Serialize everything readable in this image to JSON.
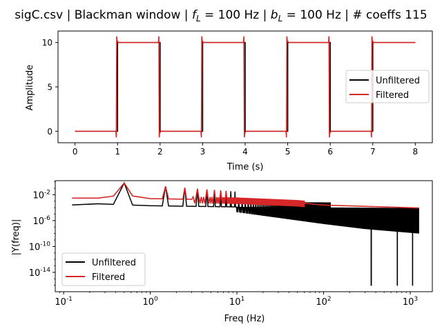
{
  "figure": {
    "title": "sigC.csv | Blackman window | f_L = 100 Hz | b_L = 100 Hz | # coeffs 115",
    "title_parts": {
      "prefix": "sigC.csv | Blackman window | ",
      "fL_sym": "f",
      "fL_sub": "L",
      "fL_val": " = 100 Hz | ",
      "bL_sym": "b",
      "bL_sub": "L",
      "bL_val": " = 100 Hz | # coeffs 115"
    }
  },
  "chart_data": [
    {
      "type": "line",
      "xlabel": "Time (s)",
      "ylabel": "Amplitude",
      "xlim": [
        -0.4,
        8.4
      ],
      "ylim": [
        -1.3,
        11.3
      ],
      "xticks": [
        0,
        1,
        2,
        3,
        4,
        5,
        6,
        7,
        8
      ],
      "yticks": [
        0,
        5,
        10
      ],
      "legend_position": "center-right",
      "series": [
        {
          "name": "Unfiltered",
          "color": "#000000",
          "x": [
            0,
            1.0,
            1.0,
            2.0,
            2.0,
            3.0,
            3.0,
            4.0,
            4.0,
            5.0,
            5.0,
            6.0,
            6.0,
            7.0,
            7.0,
            8.0
          ],
          "y": [
            0,
            0,
            10,
            10,
            0,
            0,
            10,
            10,
            0,
            0,
            10,
            10,
            0,
            0,
            10,
            10
          ]
        },
        {
          "name": "Filtered",
          "color": "#d62728",
          "x": [
            0,
            0.96,
            0.97,
            0.98,
            0.99,
            1.02,
            1.05,
            1.96,
            1.97,
            1.98,
            1.99,
            2.02,
            2.05,
            2.96,
            2.97,
            2.98,
            2.99,
            3.02,
            3.05,
            3.96,
            3.97,
            3.98,
            3.99,
            4.02,
            4.05,
            4.96,
            4.97,
            4.98,
            4.99,
            5.02,
            5.05,
            5.96,
            5.97,
            5.98,
            5.99,
            6.02,
            6.05,
            6.96,
            6.97,
            6.98,
            6.99,
            7.02,
            7.05,
            8.0
          ],
          "y": [
            0,
            0,
            -0.7,
            10.7,
            10.2,
            10,
            10,
            10,
            10.7,
            -0.7,
            -0.2,
            0,
            0,
            0,
            -0.7,
            10.7,
            10.2,
            10,
            10,
            10,
            10.7,
            -0.7,
            -0.2,
            0,
            0,
            0,
            -0.7,
            10.7,
            10.2,
            10,
            10,
            10,
            10.7,
            -0.7,
            -0.2,
            0,
            0,
            0,
            -0.7,
            10.7,
            10.2,
            10,
            10,
            10
          ]
        }
      ]
    },
    {
      "type": "line",
      "xlabel": "Freq (Hz)",
      "ylabel": "|Y(freq)|",
      "xscale": "log",
      "yscale": "log",
      "xlim": [
        0.08,
        1800
      ],
      "ylim": [
        1e-17,
        1.5
      ],
      "xticks": [
        0.1,
        1,
        10,
        100,
        1000
      ],
      "xtick_labels": [
        "10^-1",
        "10^0",
        "10^1",
        "10^2",
        "10^3"
      ],
      "yticks": [
        0.01,
        1e-06,
        1e-10,
        1e-14
      ],
      "ytick_labels": [
        "10^-2",
        "10^-6",
        "10^-10",
        "10^-14"
      ],
      "legend_position": "lower-left",
      "series": [
        {
          "name": "Unfiltered",
          "color": "#000000",
          "harmonic_peaks": {
            "f": [
              0.5,
              1.5,
              2.5,
              3.5,
              4.5,
              5.5,
              6.5,
              7.5,
              8.5,
              9.5
            ],
            "amp": [
              0.65,
              0.2,
              0.12,
              0.085,
              0.066,
              0.054,
              0.046,
              0.04,
              0.035,
              0.031
            ]
          },
          "baseline": {
            "f": [
              0.08,
              0.25,
              1.0,
              10,
              100,
              1250
            ],
            "amp": [
              0.0002,
              0.0004,
              0.0002,
              0.00013,
              0.00011,
              9e-05
            ]
          },
          "envelope_lower": {
            "f": [
              10,
              100,
              300,
              1250
            ],
            "amp": [
              2e-05,
              3e-07,
              5e-08,
              1e-08
            ]
          },
          "nulls": {
            "f": [
              355,
              710,
              1065
            ],
            "amp": [
              1e-16,
              1e-16,
              1e-16
            ]
          }
        },
        {
          "name": "Filtered",
          "color": "#d62728",
          "harmonic_peaks": {
            "f": [
              0.5,
              1.5,
              2.5,
              3.5,
              4.5,
              5.5,
              6.5,
              7.5
            ],
            "amp": [
              0.65,
              0.2,
              0.12,
              0.085,
              0.066,
              0.054,
              0.046,
              0.04
            ]
          },
          "baseline": {
            "f": [
              0.08,
              0.25,
              0.5,
              1.0,
              10,
              50,
              100,
              1250
            ],
            "amp": [
              0.003,
              0.003,
              0.01,
              0.0025,
              0.0015,
              0.0006,
              0.00025,
              9e-05
            ]
          },
          "ripple_to": 60
        }
      ]
    }
  ]
}
